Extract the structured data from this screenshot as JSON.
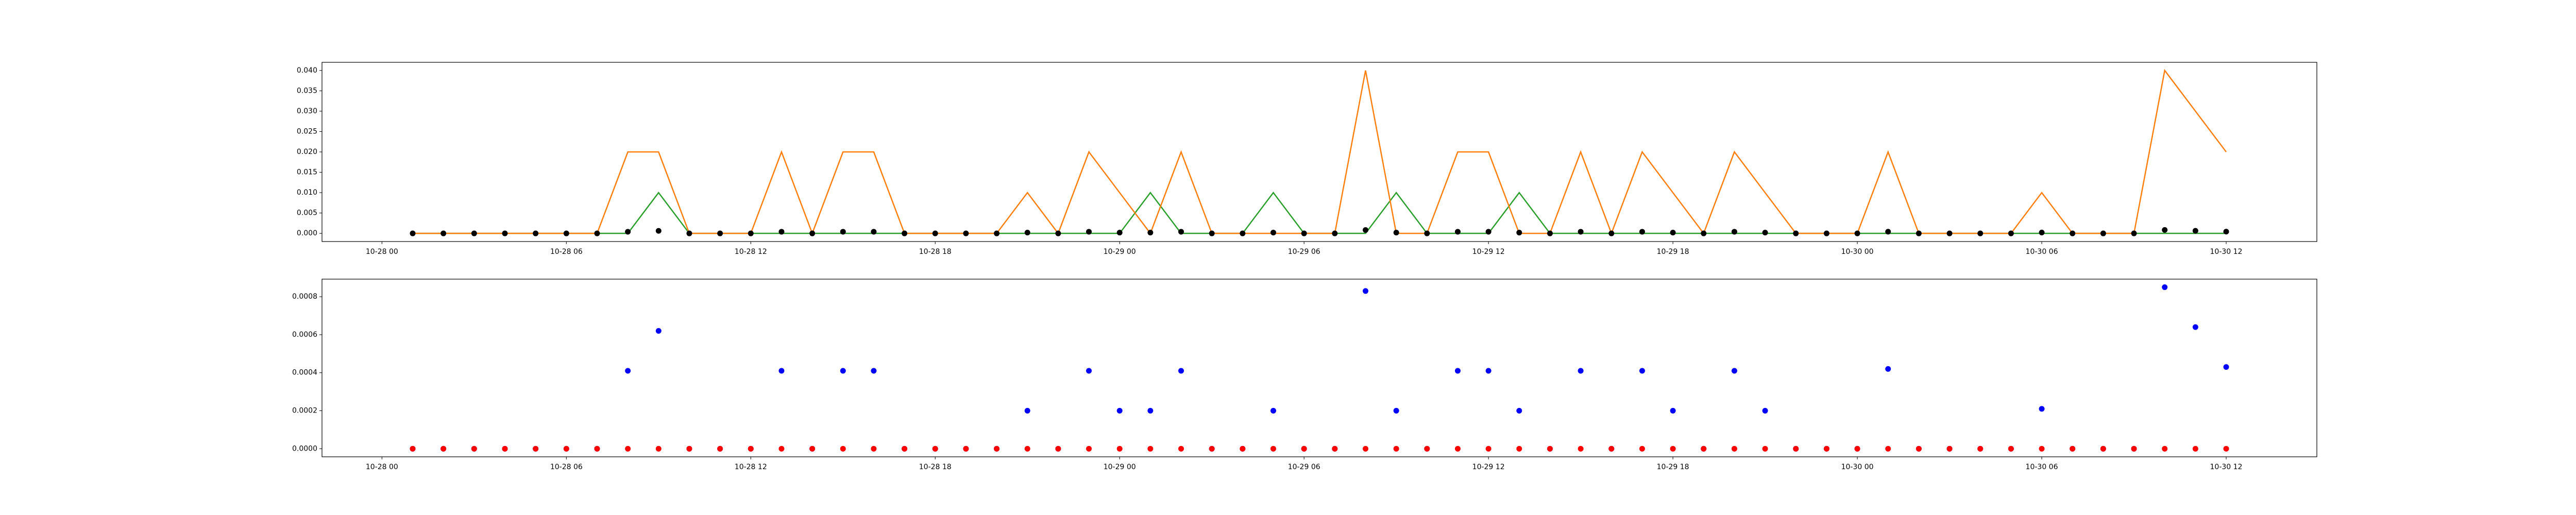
{
  "chart_data": [
    {
      "type": "line",
      "x": [
        "10-28 01",
        "10-28 02",
        "10-28 03",
        "10-28 04",
        "10-28 05",
        "10-28 06",
        "10-28 07",
        "10-28 08",
        "10-28 09",
        "10-28 10",
        "10-28 11",
        "10-28 12",
        "10-28 13",
        "10-28 14",
        "10-28 15",
        "10-28 16",
        "10-28 17",
        "10-28 18",
        "10-28 19",
        "10-28 20",
        "10-28 21",
        "10-28 22",
        "10-28 23",
        "10-29 00",
        "10-29 01",
        "10-29 02",
        "10-29 03",
        "10-29 04",
        "10-29 05",
        "10-29 06",
        "10-29 07",
        "10-29 08",
        "10-29 09",
        "10-29 10",
        "10-29 11",
        "10-29 12",
        "10-29 13",
        "10-29 14",
        "10-29 15",
        "10-29 16",
        "10-29 17",
        "10-29 18",
        "10-29 19",
        "10-29 20",
        "10-29 21",
        "10-29 22",
        "10-29 23",
        "10-30 00",
        "10-30 01",
        "10-30 02",
        "10-30 03",
        "10-30 04",
        "10-30 05",
        "10-30 06",
        "10-30 07",
        "10-30 08",
        "10-30 09",
        "10-30 10",
        "10-30 11",
        "10-30 12"
      ],
      "series": [
        {
          "color": "#2ca02c",
          "mode": "line",
          "values": [
            0,
            0,
            0,
            0,
            0,
            0,
            0,
            0,
            0.01,
            0,
            0,
            0,
            0,
            0,
            0,
            0,
            0,
            0,
            0,
            0,
            0,
            0,
            0,
            0,
            0.01,
            0,
            0,
            0,
            0.01,
            0,
            0,
            0,
            0.01,
            0,
            0,
            0,
            0.01,
            0,
            0,
            0,
            0,
            0,
            0,
            0,
            0,
            0,
            0,
            0,
            0,
            0,
            0,
            0,
            0,
            0,
            0,
            0,
            0,
            0,
            0,
            0
          ]
        },
        {
          "color": "#ff7f0e",
          "mode": "line",
          "values": [
            0,
            0,
            0,
            0,
            0,
            0,
            0,
            0.02,
            0.02,
            0,
            0,
            0,
            0.02,
            0,
            0.02,
            0.02,
            0,
            0,
            0,
            0,
            0.01,
            0,
            0.02,
            0.01,
            0,
            0.02,
            0,
            0,
            0,
            0,
            0,
            0.04,
            0,
            0,
            0.02,
            0.02,
            0,
            0,
            0.02,
            0,
            0.02,
            0.01,
            0,
            0.02,
            0.01,
            0,
            0,
            0,
            0.02,
            0,
            0,
            0,
            0,
            0.01,
            0,
            0,
            0,
            0.04,
            0.03,
            0.02
          ]
        },
        {
          "color": "#000000",
          "mode": "markers",
          "values": [
            0,
            0,
            0,
            0,
            0,
            0,
            0,
            0.00041,
            0.00062,
            0,
            0,
            0,
            0.00041,
            0,
            0.00041,
            0.00041,
            0,
            0,
            0,
            0,
            0.0002,
            0,
            0.00041,
            0.0002,
            0.0002,
            0.00041,
            0,
            0,
            0.0002,
            0,
            0,
            0.00083,
            0.0002,
            0,
            0.00041,
            0.00041,
            0.0002,
            0,
            0.00041,
            0,
            0.00041,
            0.0002,
            0,
            0.00041,
            0.0002,
            0,
            0,
            0,
            0.00042,
            0,
            0,
            0,
            0,
            0.00021,
            0,
            0,
            0,
            0.00085,
            0.00064,
            0.00043
          ]
        }
      ],
      "ylim": [
        -0.002,
        0.042
      ],
      "yticks": [
        {
          "value": 0,
          "label": "0.000"
        },
        {
          "value": 0.005,
          "label": "0.005"
        },
        {
          "value": 0.01,
          "label": "0.010"
        },
        {
          "value": 0.015,
          "label": "0.015"
        },
        {
          "value": 0.02,
          "label": "0.020"
        },
        {
          "value": 0.025,
          "label": "0.025"
        },
        {
          "value": 0.03,
          "label": "0.030"
        },
        {
          "value": 0.035,
          "label": "0.035"
        },
        {
          "value": 0.04,
          "label": "0.040"
        }
      ],
      "xticks": [
        "10-28 00",
        "10-28 06",
        "10-28 12",
        "10-28 18",
        "10-29 00",
        "10-29 06",
        "10-29 12",
        "10-29 18",
        "10-30 00",
        "10-30 06",
        "10-30 12"
      ]
    },
    {
      "type": "scatter",
      "x": [
        "10-28 01",
        "10-28 02",
        "10-28 03",
        "10-28 04",
        "10-28 05",
        "10-28 06",
        "10-28 07",
        "10-28 08",
        "10-28 09",
        "10-28 10",
        "10-28 11",
        "10-28 12",
        "10-28 13",
        "10-28 14",
        "10-28 15",
        "10-28 16",
        "10-28 17",
        "10-28 18",
        "10-28 19",
        "10-28 20",
        "10-28 21",
        "10-28 22",
        "10-28 23",
        "10-29 00",
        "10-29 01",
        "10-29 02",
        "10-29 03",
        "10-29 04",
        "10-29 05",
        "10-29 06",
        "10-29 07",
        "10-29 08",
        "10-29 09",
        "10-29 10",
        "10-29 11",
        "10-29 12",
        "10-29 13",
        "10-29 14",
        "10-29 15",
        "10-29 16",
        "10-29 17",
        "10-29 18",
        "10-29 19",
        "10-29 20",
        "10-29 21",
        "10-29 22",
        "10-29 23",
        "10-30 00",
        "10-30 01",
        "10-30 02",
        "10-30 03",
        "10-30 04",
        "10-30 05",
        "10-30 06",
        "10-30 07",
        "10-30 08",
        "10-30 09",
        "10-30 10",
        "10-30 11",
        "10-30 12"
      ],
      "series": [
        {
          "color": "#0000ff",
          "mode": "markers",
          "values": [
            0,
            0,
            0,
            0,
            0,
            0,
            0,
            0.00041,
            0.00062,
            0,
            0,
            0,
            0.00041,
            0,
            0.00041,
            0.00041,
            0,
            0,
            0,
            0,
            0.0002,
            0,
            0.00041,
            0.0002,
            0.0002,
            0.00041,
            0,
            0,
            0.0002,
            0,
            0,
            0.00083,
            0.0002,
            0,
            0.00041,
            0.00041,
            0.0002,
            0,
            0.00041,
            0,
            0.00041,
            0.0002,
            0,
            0.00041,
            0.0002,
            0,
            0,
            0,
            0.00042,
            0,
            0,
            0,
            0,
            0.00021,
            0,
            0,
            0,
            0.00085,
            0.00064,
            0.00043
          ]
        },
        {
          "color": "#ff0000",
          "mode": "markers",
          "values": [
            0,
            0,
            0,
            0,
            0,
            0,
            0,
            0,
            0,
            0,
            0,
            0,
            0,
            0,
            0,
            0,
            0,
            0,
            0,
            0,
            0,
            0,
            0,
            0,
            0,
            0,
            0,
            0,
            0,
            0,
            0,
            0,
            0,
            0,
            0,
            0,
            0,
            0,
            0,
            0,
            0,
            0,
            0,
            0,
            0,
            0,
            0,
            0,
            0,
            0,
            0,
            0,
            0,
            0,
            0,
            0,
            0,
            0,
            0,
            0
          ]
        }
      ],
      "ylim": [
        -4.25e-05,
        0.0008925
      ],
      "yticks": [
        {
          "value": 0,
          "label": "0.0000"
        },
        {
          "value": 0.0002,
          "label": "0.0002"
        },
        {
          "value": 0.0004,
          "label": "0.0004"
        },
        {
          "value": 0.0006,
          "label": "0.0006"
        },
        {
          "value": 0.0008,
          "label": "0.0008"
        }
      ],
      "xticks": [
        "10-28 00",
        "10-28 06",
        "10-28 12",
        "10-28 18",
        "10-29 00",
        "10-29 06",
        "10-29 12",
        "10-29 18",
        "10-30 00",
        "10-30 06",
        "10-30 12"
      ]
    }
  ]
}
